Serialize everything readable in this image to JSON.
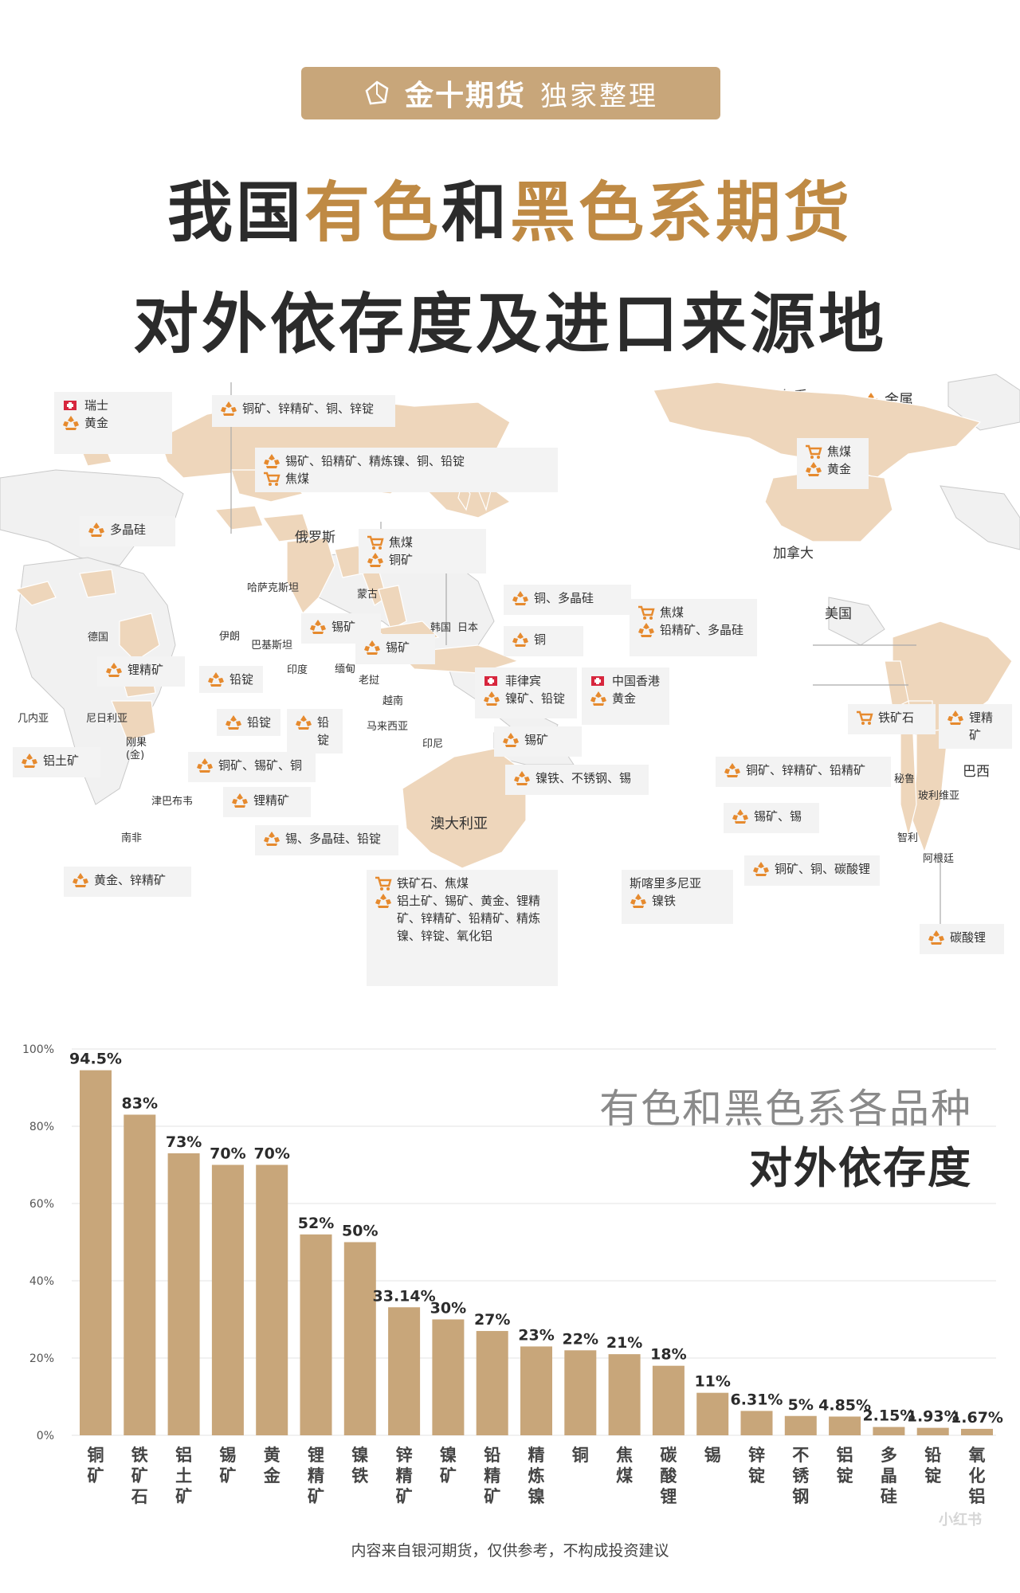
{
  "header": {
    "brand": "金十期货",
    "subtitle": "独家整理"
  },
  "title": {
    "line1_part1": "我国",
    "line1_part2": "有色",
    "line1_part3": "和",
    "line1_part4": "黑色系期货",
    "line2": "对外依存度及进口来源地"
  },
  "legend": {
    "ferrous": "黑色系",
    "metal": "金属"
  },
  "colors": {
    "gold": "#bf8a44",
    "bar": "#c8a67a",
    "land": "#eed6bb",
    "land_gray": "#f1f1f1",
    "icon": "#e68a2e"
  },
  "map": {
    "countries": [
      {
        "name": "俄罗斯"
      },
      {
        "name": "加拿大"
      },
      {
        "name": "美国"
      },
      {
        "name": "哈萨克斯坦"
      },
      {
        "name": "蒙古"
      },
      {
        "name": "德国"
      },
      {
        "name": "伊朗"
      },
      {
        "name": "巴基斯坦"
      },
      {
        "name": "印度"
      },
      {
        "name": "缅甸"
      },
      {
        "name": "老挝"
      },
      {
        "name": "越南"
      },
      {
        "name": "马来西亚"
      },
      {
        "name": "印尼"
      },
      {
        "name": "韩国"
      },
      {
        "name": "日本"
      },
      {
        "name": "澳大利亚"
      },
      {
        "name": "几内亚"
      },
      {
        "name": "尼日利亚"
      },
      {
        "name": "刚果\n(金)"
      },
      {
        "name": "津巴布韦"
      },
      {
        "name": "南非"
      },
      {
        "name": "秘鲁"
      },
      {
        "name": "巴西"
      },
      {
        "name": "玻利维亚"
      },
      {
        "name": "智利"
      },
      {
        "name": "阿根廷"
      }
    ],
    "cards": [
      {
        "flag": "瑞士",
        "items": [
          {
            "icon": "metal-icon",
            "text": "黄金"
          }
        ]
      },
      {
        "items": [
          {
            "icon": "metal-icon",
            "text": "铜矿、锌精矿、铜、锌锭"
          }
        ]
      },
      {
        "items": [
          {
            "icon": "metal-icon",
            "text": "锡矿、铅精矿、精炼镍、铜、铅锭"
          },
          {
            "icon": "ferrous-icon",
            "text": "焦煤"
          }
        ]
      },
      {
        "items": [
          {
            "icon": "metal-icon",
            "text": "多晶硅"
          }
        ]
      },
      {
        "items": [
          {
            "icon": "ferrous-icon",
            "text": "焦煤"
          },
          {
            "icon": "metal-icon",
            "text": "铜矿"
          }
        ]
      },
      {
        "items": [
          {
            "icon": "metal-icon",
            "text": "锡矿"
          }
        ]
      },
      {
        "items": [
          {
            "icon": "metal-icon",
            "text": "锡矿"
          }
        ]
      },
      {
        "items": [
          {
            "icon": "metal-icon",
            "text": "铜、多晶硅"
          }
        ]
      },
      {
        "items": [
          {
            "icon": "metal-icon",
            "text": "铜"
          }
        ]
      },
      {
        "items": [
          {
            "icon": "ferrous-icon",
            "text": "焦煤"
          },
          {
            "icon": "metal-icon",
            "text": "铅精矿、多晶硅"
          }
        ]
      },
      {
        "flag": "菲律宾",
        "items": [
          {
            "icon": "metal-icon",
            "text": "镍矿、铅锭"
          }
        ]
      },
      {
        "flag": "中国香港",
        "items": [
          {
            "icon": "metal-icon",
            "text": "黄金"
          }
        ]
      },
      {
        "items": [
          {
            "icon": "metal-icon",
            "text": "锂精矿"
          }
        ]
      },
      {
        "items": [
          {
            "icon": "metal-icon",
            "text": "铅锭"
          }
        ]
      },
      {
        "items": [
          {
            "icon": "metal-icon",
            "text": "铅锭"
          }
        ]
      },
      {
        "items": [
          {
            "icon": "metal-icon",
            "text": "铅锭"
          }
        ]
      },
      {
        "items": [
          {
            "icon": "metal-icon",
            "text": "锡矿"
          }
        ]
      },
      {
        "items": [
          {
            "icon": "metal-icon",
            "text": "镍铁、不锈钢、锡"
          }
        ]
      },
      {
        "items": [
          {
            "icon": "metal-icon",
            "text": "铝土矿"
          }
        ]
      },
      {
        "items": [
          {
            "icon": "metal-icon",
            "text": "铜矿、锡矿、铜"
          }
        ]
      },
      {
        "items": [
          {
            "icon": "metal-icon",
            "text": "锂精矿"
          }
        ]
      },
      {
        "items": [
          {
            "icon": "metal-icon",
            "text": "锡、多晶硅、铅锭"
          }
        ]
      },
      {
        "items": [
          {
            "icon": "metal-icon",
            "text": "黄金、锌精矿"
          }
        ]
      },
      {
        "items": [
          {
            "icon": "ferrous-icon",
            "text": "铁矿石、焦煤"
          },
          {
            "icon": "metal-icon",
            "text": "铝土矿、锡矿、黄金、锂精矿、锌精矿、铅精矿、精炼镍、锌锭、氧化铝"
          }
        ]
      },
      {
        "title": "斯喀里多尼亚",
        "items": [
          {
            "icon": "metal-icon",
            "text": "镍铁"
          }
        ]
      },
      {
        "items": [
          {
            "icon": "ferrous-icon",
            "text": "焦煤"
          },
          {
            "icon": "metal-icon",
            "text": "黄金"
          }
        ]
      },
      {
        "items": [
          {
            "icon": "ferrous-icon",
            "text": "铁矿石"
          }
        ]
      },
      {
        "items": [
          {
            "icon": "metal-icon",
            "text": "锂精矿"
          }
        ]
      },
      {
        "items": [
          {
            "icon": "metal-icon",
            "text": "铜矿、锌精矿、铅精矿"
          }
        ]
      },
      {
        "items": [
          {
            "icon": "metal-icon",
            "text": "锡矿、锡"
          }
        ]
      },
      {
        "items": [
          {
            "icon": "metal-icon",
            "text": "铜矿、铜、碳酸锂"
          }
        ]
      },
      {
        "items": [
          {
            "icon": "metal-icon",
            "text": "碳酸锂"
          }
        ]
      }
    ]
  },
  "chart_data": {
    "type": "bar",
    "title": "有色和黑色系各品种",
    "subtitle": "对外依存度",
    "categories": [
      "铜矿",
      "铁矿石",
      "铝土矿",
      "锡矿",
      "黄金",
      "锂精矿",
      "镍铁",
      "锌精矿",
      "镍矿",
      "铅精矿",
      "精炼镍",
      "铜",
      "焦煤",
      "碳酸锂",
      "锡",
      "锌锭",
      "不锈钢",
      "铝锭",
      "多晶硅",
      "铅锭",
      "氧化铝"
    ],
    "values": [
      94.5,
      83,
      73,
      70,
      70,
      52,
      50,
      33.14,
      30,
      27,
      23,
      22,
      21,
      18,
      11,
      6.31,
      5,
      4.85,
      2.15,
      1.93,
      1.67
    ],
    "value_labels": [
      "94.5%",
      "83%",
      "73%",
      "70%",
      "70%",
      "52%",
      "50%",
      "33.14%",
      "30%",
      "27%",
      "23%",
      "22%",
      "21%",
      "18%",
      "11%",
      "6.31%",
      "5%",
      "4.85%",
      "2.15%",
      "1.93%",
      "1.67%"
    ],
    "yticks": [
      "0%",
      "20%",
      "40%",
      "60%",
      "80%",
      "100%"
    ],
    "ylim": [
      0,
      100
    ],
    "grid": true,
    "xlabel": "",
    "ylabel": ""
  },
  "footer": "内容来自银河期货，仅供参考，不构成投资建议",
  "watermark": "小红书"
}
